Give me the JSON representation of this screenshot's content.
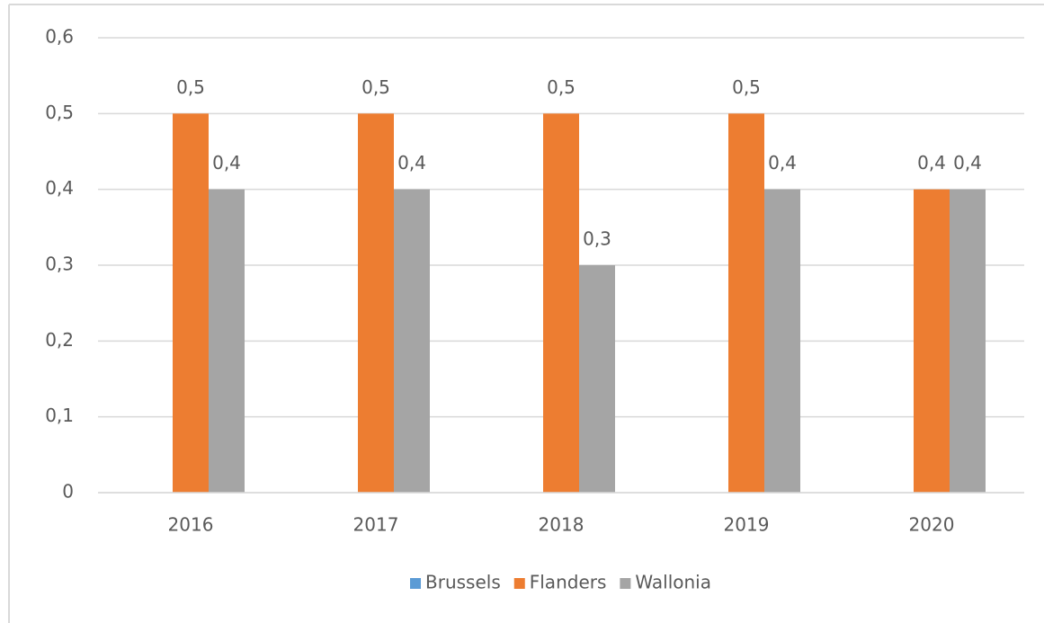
{
  "chart_data": {
    "type": "bar",
    "categories": [
      "2016",
      "2017",
      "2018",
      "2019",
      "2020"
    ],
    "series": [
      {
        "name": "Brussels",
        "color": "#5b9bd5",
        "values": [
          null,
          null,
          null,
          null,
          null
        ]
      },
      {
        "name": "Flanders",
        "color": "#ed7d31",
        "values": [
          0.5,
          0.5,
          0.5,
          0.5,
          0.4
        ],
        "value_labels": [
          "0,5",
          "0,5",
          "0,5",
          "0,5",
          "0,4"
        ]
      },
      {
        "name": "Wallonia",
        "color": "#a5a5a5",
        "values": [
          0.4,
          0.4,
          0.3,
          0.4,
          0.4
        ],
        "value_labels": [
          "0,4",
          "0,4",
          "0,3",
          "0,4",
          "0,4"
        ]
      }
    ],
    "ylim": [
      0,
      0.6
    ],
    "yticks": [
      {
        "value": 0,
        "label": "0"
      },
      {
        "value": 0.1,
        "label": "0,1"
      },
      {
        "value": 0.2,
        "label": "0,2"
      },
      {
        "value": 0.3,
        "label": "0,3"
      },
      {
        "value": 0.4,
        "label": "0,4"
      },
      {
        "value": 0.5,
        "label": "0,5"
      },
      {
        "value": 0.6,
        "label": "0,6"
      }
    ],
    "grid": true,
    "legend": "bottom"
  }
}
